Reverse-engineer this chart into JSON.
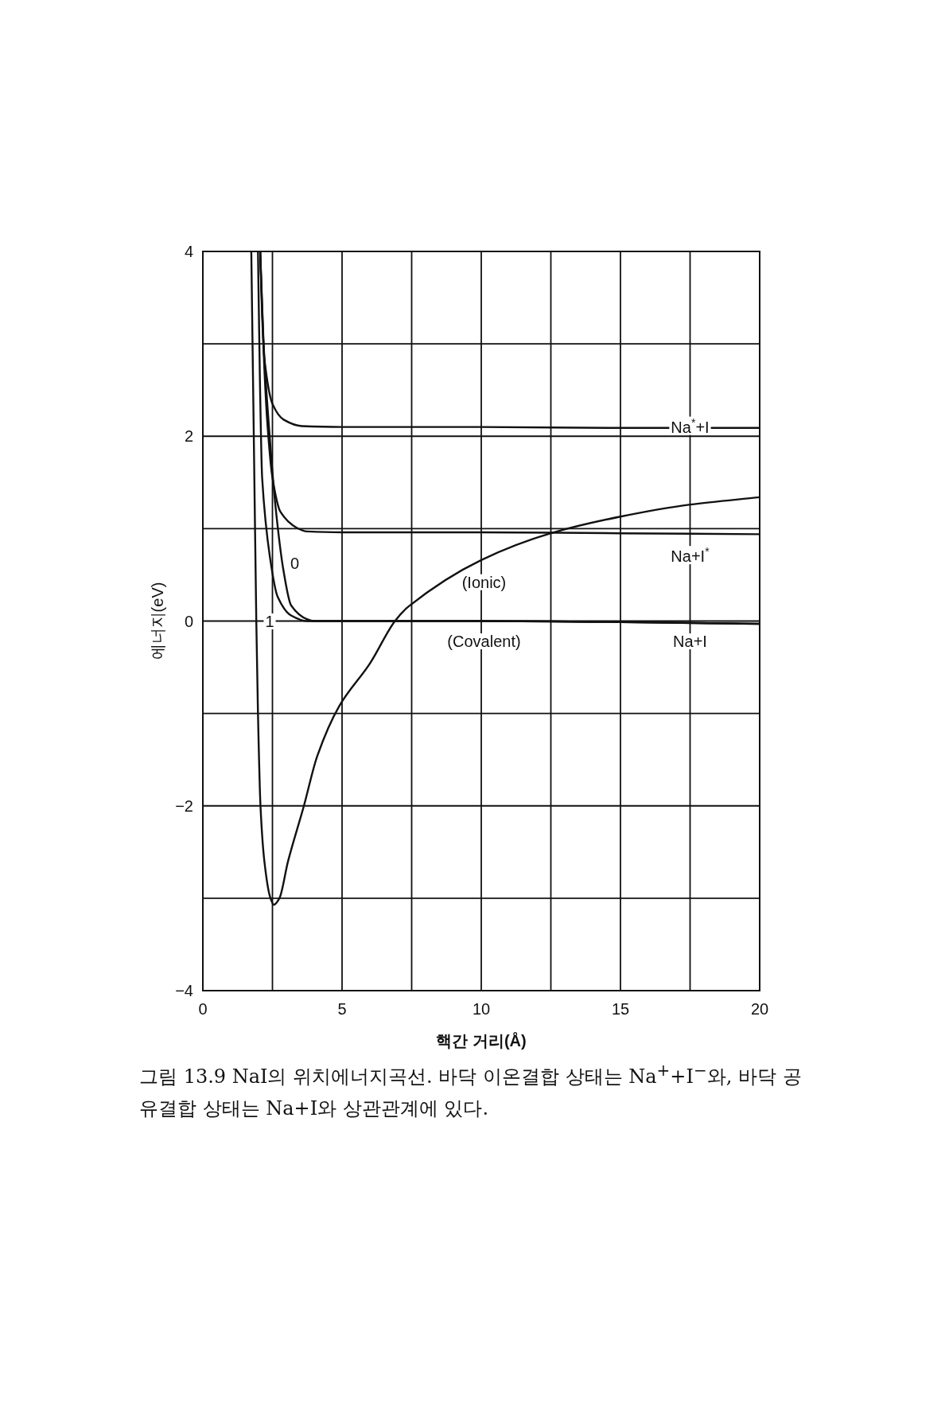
{
  "chart_data": {
    "type": "line",
    "xlabel": "핵간 거리(Å)",
    "ylabel": "에너지(eV)",
    "xlim": [
      0,
      20
    ],
    "ylim": [
      -4,
      4
    ],
    "xticks": [
      0,
      {
        "value": 2.5,
        "label": null
      },
      5,
      {
        "value": 7.5,
        "label": null
      },
      10,
      {
        "value": 12.5,
        "label": null
      },
      15,
      {
        "value": 17.5,
        "label": null
      },
      20
    ],
    "yticks": [
      {
        "value": -4,
        "label": "−4"
      },
      {
        "value": -3,
        "label": null
      },
      {
        "value": -2,
        "label": "−2"
      },
      {
        "value": -1,
        "label": null
      },
      0,
      {
        "value": 1,
        "label": null
      },
      2,
      {
        "value": 3,
        "label": null
      },
      4
    ],
    "grid": true,
    "series": [
      {
        "color": "#111111",
        "x": [
          1.74,
          1.83,
          1.92,
          1.98,
          2.07,
          2.21,
          2.41,
          2.55,
          2.75,
          3.06,
          3.63,
          4.11,
          4.9,
          6.0,
          6.9,
          7.4,
          10,
          12.5,
          15,
          17.5,
          20
        ],
        "values": [
          4,
          2,
          0,
          -1,
          -2,
          -2.6,
          -2.98,
          -3.07,
          -3.0,
          -2.6,
          -2.0,
          -1.46,
          -0.92,
          -0.46,
          0,
          0.16,
          0.66,
          0.95,
          1.13,
          1.26,
          1.34
        ]
      },
      {
        "color": "#111111",
        "x": [
          2.06,
          2.13,
          2.21,
          2.5,
          2.9,
          3.55,
          5,
          10,
          15,
          20
        ],
        "values": [
          4,
          3.3,
          2.84,
          2.35,
          2.18,
          2.11,
          2.1,
          2.1,
          2.09,
          2.09
        ]
      },
      {
        "color": "#111111",
        "x": [
          2.06,
          2.2,
          2.32,
          2.5,
          2.79,
          3.37,
          3.74,
          5,
          10,
          15,
          20
        ],
        "values": [
          4,
          2.8,
          2.13,
          1.55,
          1.18,
          1.01,
          0.97,
          0.96,
          0.96,
          0.95,
          0.94
        ]
      },
      {
        "color": "#111111",
        "x": [
          2.06,
          2.2,
          2.4,
          2.6,
          2.9,
          3.17,
          3.74,
          4,
          10,
          20
        ],
        "values": [
          4,
          2.9,
          2.0,
          1.27,
          0.54,
          0.17,
          0.02,
          0,
          0,
          -0.03
        ]
      },
      {
        "color": "#111111",
        "x": [
          1.98,
          2.05,
          2.13,
          2.41,
          2.69,
          3.17,
          3.74,
          10,
          20
        ],
        "values": [
          4,
          2.6,
          1.55,
          0.69,
          0.26,
          0.06,
          0,
          0,
          -0.03
        ]
      }
    ],
    "annotations": [
      "Na$^{*}$+I",
      "Na+I$^{*}$",
      "Na+I",
      "(Ionic)",
      "(Covalent)",
      "0",
      "1",
      "그림 13.9 NaI의 위치에너지곡선. 바닥 이온결합 상태는 Na$^{+}$+I$^{−}$와, 바닥 공유결합 상태는 Na+I와 상관관계에 있다."
    ]
  }
}
